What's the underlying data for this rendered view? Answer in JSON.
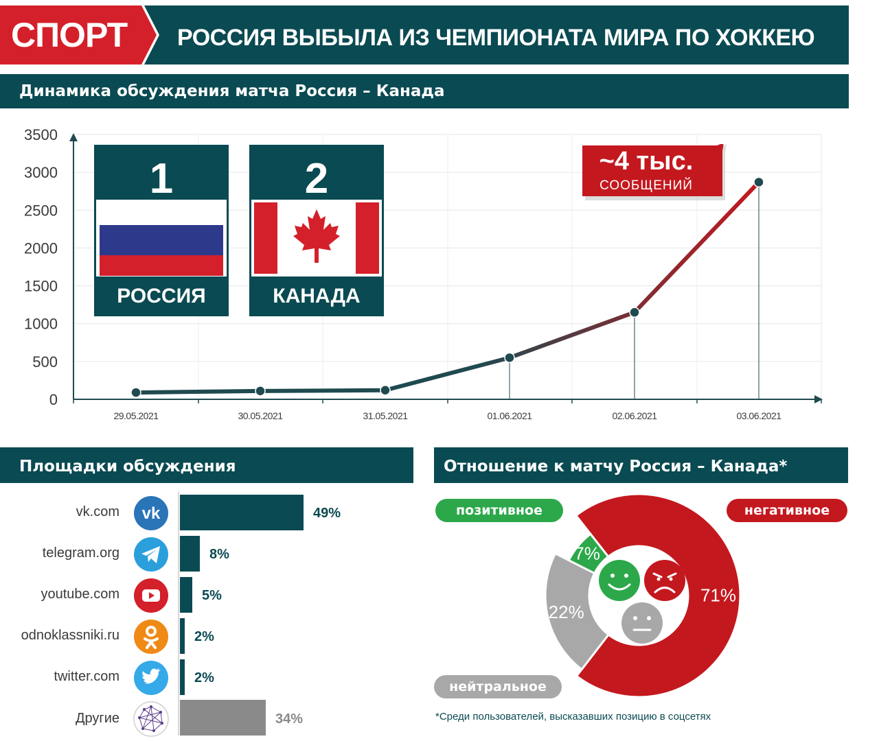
{
  "header": {
    "tag": "СПОРТ",
    "title": "РОССИЯ ВЫБЫЛА ИЗ ЧЕМПИОНАТА МИРА ПО ХОККЕЮ",
    "tag_color": "#d4202a",
    "title_color": "#0a4a52"
  },
  "line_section": {
    "title": "Динамика обсуждения матча Россия – Канада",
    "teams": [
      {
        "score": "1",
        "name": "РОССИЯ"
      },
      {
        "score": "2",
        "name": "КАНАДА"
      }
    ],
    "callout": {
      "big": "~4 тыс.",
      "small": "СООБЩЕНИЙ"
    }
  },
  "platforms_section": {
    "title": "Площадки обсуждения",
    "items": [
      {
        "label": "vk.com",
        "pct_label": "49%",
        "value": 49,
        "icon": "vk-icon",
        "color": "#2a74b8"
      },
      {
        "label": "telegram.org",
        "pct_label": "8%",
        "value": 8,
        "icon": "telegram-icon",
        "color": "#2b9fdc"
      },
      {
        "label": "youtube.com",
        "pct_label": "5%",
        "value": 5,
        "icon": "youtube-icon",
        "color": "#d4202a"
      },
      {
        "label": "odnoklassniki.ru",
        "pct_label": "2%",
        "value": 2,
        "icon": "odnoklassniki-icon",
        "color": "#ef8a16"
      },
      {
        "label": "twitter.com",
        "pct_label": "2%",
        "value": 2,
        "icon": "twitter-icon",
        "color": "#36a9e8"
      },
      {
        "label": "Другие",
        "pct_label": "34%",
        "value": 34,
        "icon": "network-icon",
        "color": "#8a8a8a"
      }
    ]
  },
  "sentiment_section": {
    "title": "Отношение к матчу Россия – Канада*",
    "legend": {
      "positive": "позитивное",
      "negative": "негативное",
      "neutral": "нейтральное"
    },
    "footnote": "*Среди пользователей, высказавших позицию в соцсетях"
  },
  "chart_data": [
    {
      "type": "line",
      "title": "Динамика обсуждения матча Россия – Канада",
      "x": [
        "29.05.2021",
        "30.05.2021",
        "31.05.2021",
        "01.06.2021",
        "02.06.2021",
        "03.06.2021"
      ],
      "series": [
        {
          "values": [
            90,
            110,
            120,
            550,
            1150,
            2870
          ]
        }
      ],
      "ylim": [
        0,
        3500
      ],
      "yticks": [
        "0",
        "500",
        "1000",
        "1500",
        "2000",
        "2500",
        "3000",
        "3500"
      ],
      "grid": true,
      "line_color": "#1f4a4f",
      "line_color_end": "#c4181f"
    },
    {
      "type": "bar",
      "title": "Площадки обсуждения",
      "categories": [
        "vk.com",
        "telegram.org",
        "youtube.com",
        "odnoklassniki.ru",
        "twitter.com",
        "Другие"
      ],
      "values": [
        49,
        8,
        5,
        2,
        2,
        34
      ],
      "unit": "%"
    },
    {
      "type": "pie",
      "title": "Отношение к матчу Россия – Канада*",
      "categories": [
        "негативное",
        "нейтральное",
        "позитивное"
      ],
      "values": [
        71,
        22,
        7
      ],
      "labels": [
        "71%",
        "22%",
        "7%"
      ],
      "colors": [
        "#c4181f",
        "#a8a8a8",
        "#2ca84a"
      ]
    }
  ]
}
